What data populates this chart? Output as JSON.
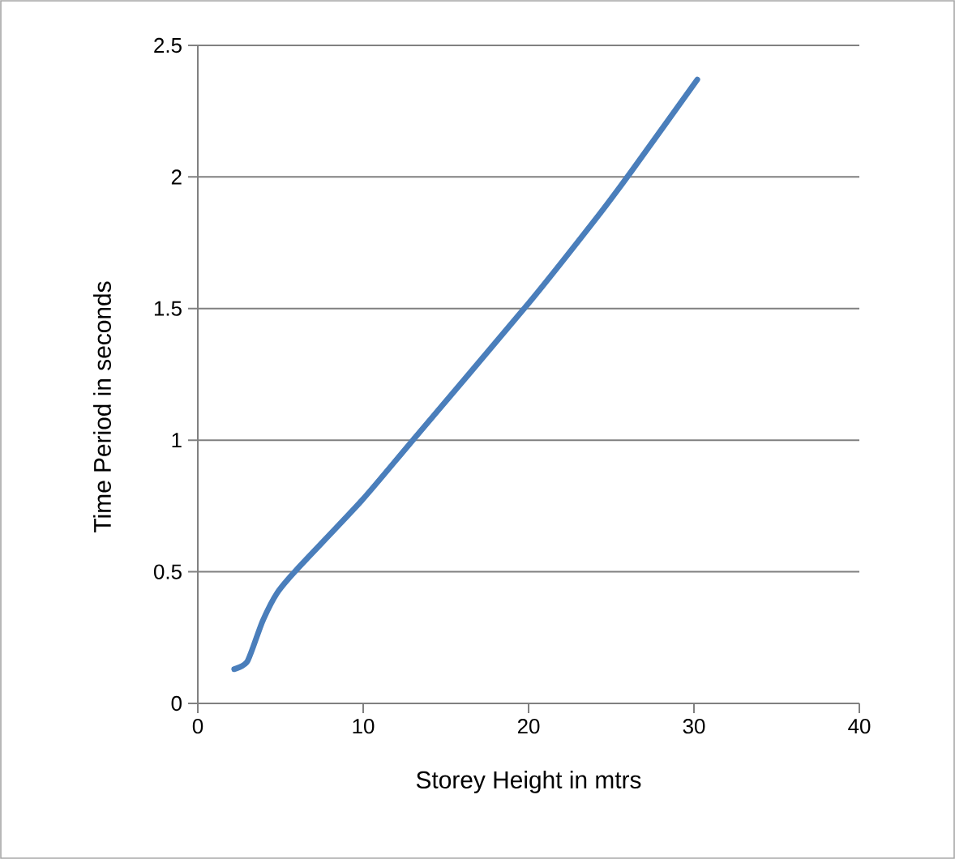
{
  "chart_data": {
    "type": "line",
    "xlabel": "Storey Height in mtrs",
    "ylabel": "Time Period  in seconds",
    "x": [
      2.2,
      3.0,
      3.9,
      4.8,
      6.0,
      9.9,
      13.0,
      20.0,
      24.3,
      26.2,
      30.2
    ],
    "series": [
      {
        "color": "#4a7ebb",
        "values": [
          0.13,
          0.16,
          0.31,
          0.42,
          0.51,
          0.77,
          1.0,
          1.52,
          1.86,
          2.02,
          2.37
        ]
      }
    ],
    "xlim": [
      0,
      40
    ],
    "ylim": [
      0,
      2.5
    ],
    "xticks": [
      0,
      10,
      20,
      30,
      40
    ],
    "yticks": [
      0,
      0.5,
      1,
      1.5,
      2,
      2.5
    ],
    "grid": "y",
    "marker": "none",
    "line_style": "solid"
  }
}
